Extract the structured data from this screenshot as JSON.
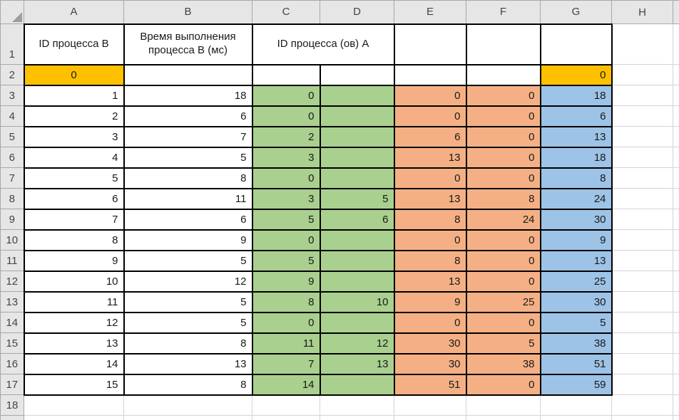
{
  "sheet": {
    "column_headers": [
      "A",
      "B",
      "C",
      "D",
      "E",
      "F",
      "G",
      "H"
    ],
    "row_headers": [
      "1",
      "2",
      "3",
      "4",
      "5",
      "6",
      "7",
      "8",
      "9",
      "10",
      "11",
      "12",
      "13",
      "14",
      "15",
      "16",
      "17",
      "18"
    ],
    "header_row": {
      "id_b": "ID процесса B",
      "time_b": "Время выполнения процесса B (мс)",
      "id_a": "ID процесса (ов) A"
    },
    "row2": {
      "a2": "0",
      "g2": "0"
    },
    "data_columns": [
      "A",
      "B",
      "C",
      "D",
      "E",
      "F",
      "G"
    ],
    "data_rows": [
      [
        "1",
        "18",
        "0",
        "",
        "0",
        "0",
        "18"
      ],
      [
        "2",
        "6",
        "0",
        "",
        "0",
        "0",
        "6"
      ],
      [
        "3",
        "7",
        "2",
        "",
        "6",
        "0",
        "13"
      ],
      [
        "4",
        "5",
        "3",
        "",
        "13",
        "0",
        "18"
      ],
      [
        "5",
        "8",
        "0",
        "",
        "0",
        "0",
        "8"
      ],
      [
        "6",
        "11",
        "3",
        "5",
        "13",
        "8",
        "24"
      ],
      [
        "7",
        "6",
        "5",
        "6",
        "8",
        "24",
        "30"
      ],
      [
        "8",
        "9",
        "0",
        "",
        "0",
        "0",
        "9"
      ],
      [
        "9",
        "5",
        "5",
        "",
        "8",
        "0",
        "13"
      ],
      [
        "10",
        "12",
        "9",
        "",
        "13",
        "0",
        "25"
      ],
      [
        "11",
        "5",
        "8",
        "10",
        "9",
        "25",
        "30"
      ],
      [
        "12",
        "5",
        "0",
        "",
        "0",
        "0",
        "5"
      ],
      [
        "13",
        "8",
        "11",
        "12",
        "30",
        "5",
        "38"
      ],
      [
        "14",
        "13",
        "7",
        "13",
        "30",
        "38",
        "51"
      ],
      [
        "15",
        "8",
        "14",
        "",
        "51",
        "0",
        "59"
      ]
    ],
    "colors": {
      "gold": "#FFC000",
      "green": "#A9D08E",
      "orange": "#F4B084",
      "blue": "#9DC3E6",
      "strip_bg": "#E6E6E6",
      "strip_line": "#A8A8A8",
      "gridline": "#D4D4D4",
      "cell_border": "#000000",
      "strip_text": "#444444",
      "cell_text": "#1A1A1A"
    }
  }
}
